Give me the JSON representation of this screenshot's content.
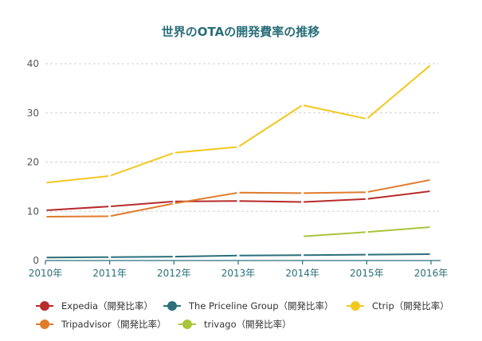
{
  "chart_data": {
    "type": "line",
    "title": "世界のOTAの開発費率の推移",
    "categories": [
      "2010年",
      "2011年",
      "2012年",
      "2013年",
      "2014年",
      "2015年",
      "2016年"
    ],
    "ylim": [
      0,
      40
    ],
    "yticks": [
      "0",
      "10",
      "20",
      "30",
      "40"
    ],
    "grid": true,
    "legend_position": "bottom",
    "series": [
      {
        "name": "Expedia（開発比率）",
        "color": "#b82b2b",
        "values": [
          10.2,
          11.0,
          12.0,
          12.1,
          11.9,
          12.5,
          14.1
        ]
      },
      {
        "name": "The Priceline Group（開発比率）",
        "color": "#2a6f7a",
        "values": [
          0.6,
          0.7,
          0.8,
          1.0,
          1.1,
          1.2,
          1.3
        ]
      },
      {
        "name": "Ctrip（開発比率）",
        "color": "#f2c81e",
        "values": [
          15.8,
          17.2,
          21.9,
          23.1,
          31.6,
          28.8,
          39.8
        ]
      },
      {
        "name": "Tripadvisor（開発比率）",
        "color": "#e07b2c",
        "values": [
          8.9,
          9.0,
          11.6,
          13.8,
          13.7,
          13.9,
          16.4
        ]
      },
      {
        "name": "trivago（開発比率）",
        "color": "#a9c53a",
        "values": [
          null,
          null,
          null,
          null,
          4.9,
          5.8,
          6.8
        ]
      }
    ]
  }
}
